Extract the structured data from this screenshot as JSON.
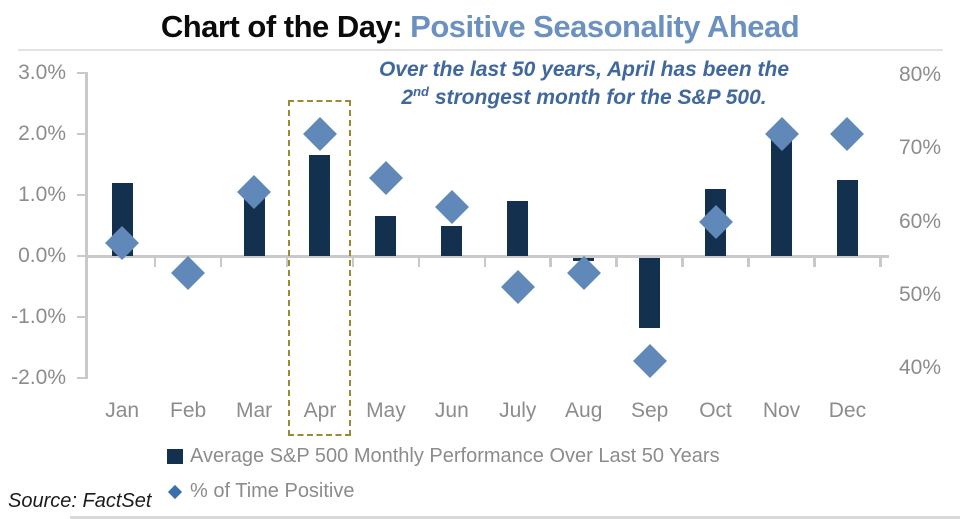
{
  "title": {
    "prefix": "Chart of the Day: ",
    "highlight": "Positive Seasonality Ahead"
  },
  "annotation": {
    "line1": "Over the last 50 years, April has been the",
    "line2_num": "2",
    "line2_sup": "nd",
    "line2_rest": " strongest month for the S&P 500."
  },
  "legend": [
    {
      "marker": "bar-swatch",
      "label": "Average S&P 500 Monthly Performance Over Last 50 Years"
    },
    {
      "marker": "diamond-swatch",
      "label": "% of Time Positive"
    }
  ],
  "source": "Source: FactSet",
  "colors": {
    "title_accent": "#6b91c1",
    "annotation_text": "#40689e",
    "bar": "#13304f",
    "diamond": "#6089ba",
    "legend_diamond": "#3a6fae",
    "axis_line": "#c9c9c9",
    "axis_text": "#8c8c8c",
    "highlight_box": "#9c8a33",
    "source_text": "#1c1c1c"
  },
  "chart_data": {
    "type": "combo",
    "title": "Chart of the Day: Positive Seasonality Ahead",
    "categories": [
      "Jan",
      "Feb",
      "Mar",
      "Apr",
      "May",
      "Jun",
      "July",
      "Aug",
      "Sep",
      "Oct",
      "Nov",
      "Dec"
    ],
    "series": [
      {
        "name": "Average S&P 500 Monthly Performance Over Last 50 Years",
        "type": "bar",
        "axis": "left",
        "unit": "%",
        "values": [
          1.2,
          0.0,
          0.95,
          1.65,
          0.65,
          0.5,
          0.9,
          -0.05,
          -1.15,
          1.1,
          1.9,
          1.25
        ]
      },
      {
        "name": "% of Time Positive",
        "type": "scatter-diamond",
        "axis": "right",
        "unit": "%",
        "values": [
          57,
          53,
          64,
          72,
          66,
          62,
          51,
          53,
          41,
          60,
          72,
          72
        ]
      }
    ],
    "left_axis": {
      "tick_labels": [
        "3.0%",
        "2.0%",
        "1.0%",
        "0.0%",
        "-1.0%",
        "-2.0%"
      ],
      "tick_values": [
        3,
        2,
        1,
        0,
        -1,
        -2
      ],
      "min": -2,
      "max": 3
    },
    "right_axis": {
      "tick_labels": [
        "80%",
        "70%",
        "60%",
        "50%",
        "40%"
      ],
      "tick_values": [
        80,
        70,
        60,
        50,
        40
      ],
      "min": 40,
      "max": 80
    },
    "grid": "none",
    "legend_position": "bottom",
    "highlight_box_category": "Apr"
  }
}
